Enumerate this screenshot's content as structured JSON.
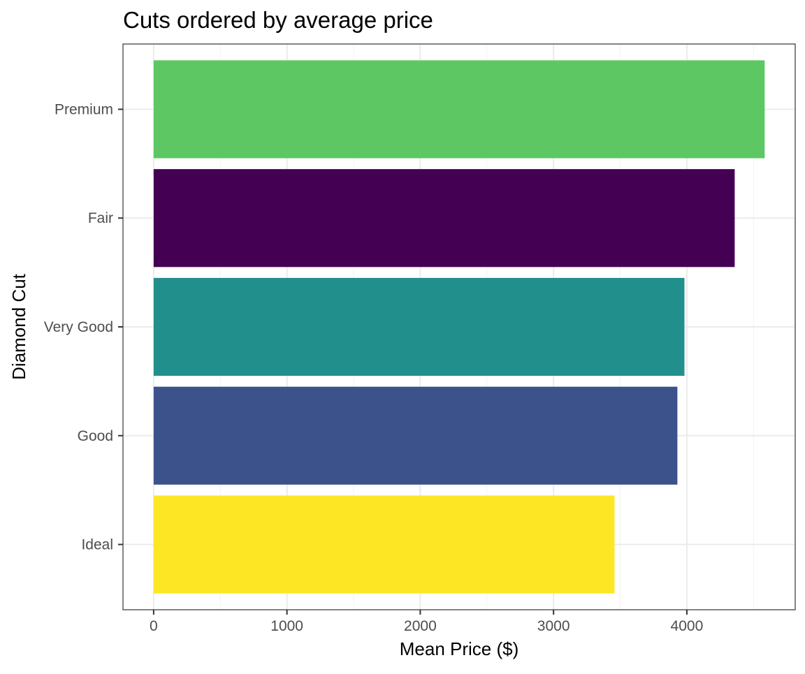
{
  "chart_data": {
    "type": "bar",
    "orientation": "horizontal",
    "title": "Cuts ordered by average price",
    "xlabel": "Mean Price ($)",
    "ylabel": "Diamond Cut",
    "categories": [
      "Ideal",
      "Good",
      "Very Good",
      "Fair",
      "Premium"
    ],
    "values": [
      3458,
      3929,
      3982,
      4359,
      4584
    ],
    "colors": [
      "#FDE725",
      "#3B528B",
      "#21908C",
      "#440154",
      "#5DC863"
    ],
    "xlim": [
      -230,
      4813
    ],
    "xticks": [
      0,
      1000,
      2000,
      3000,
      4000
    ],
    "xtick_labels": [
      "0",
      "1000",
      "2000",
      "3000",
      "4000"
    ],
    "grid": true,
    "theme": "bw",
    "legend": "none"
  }
}
